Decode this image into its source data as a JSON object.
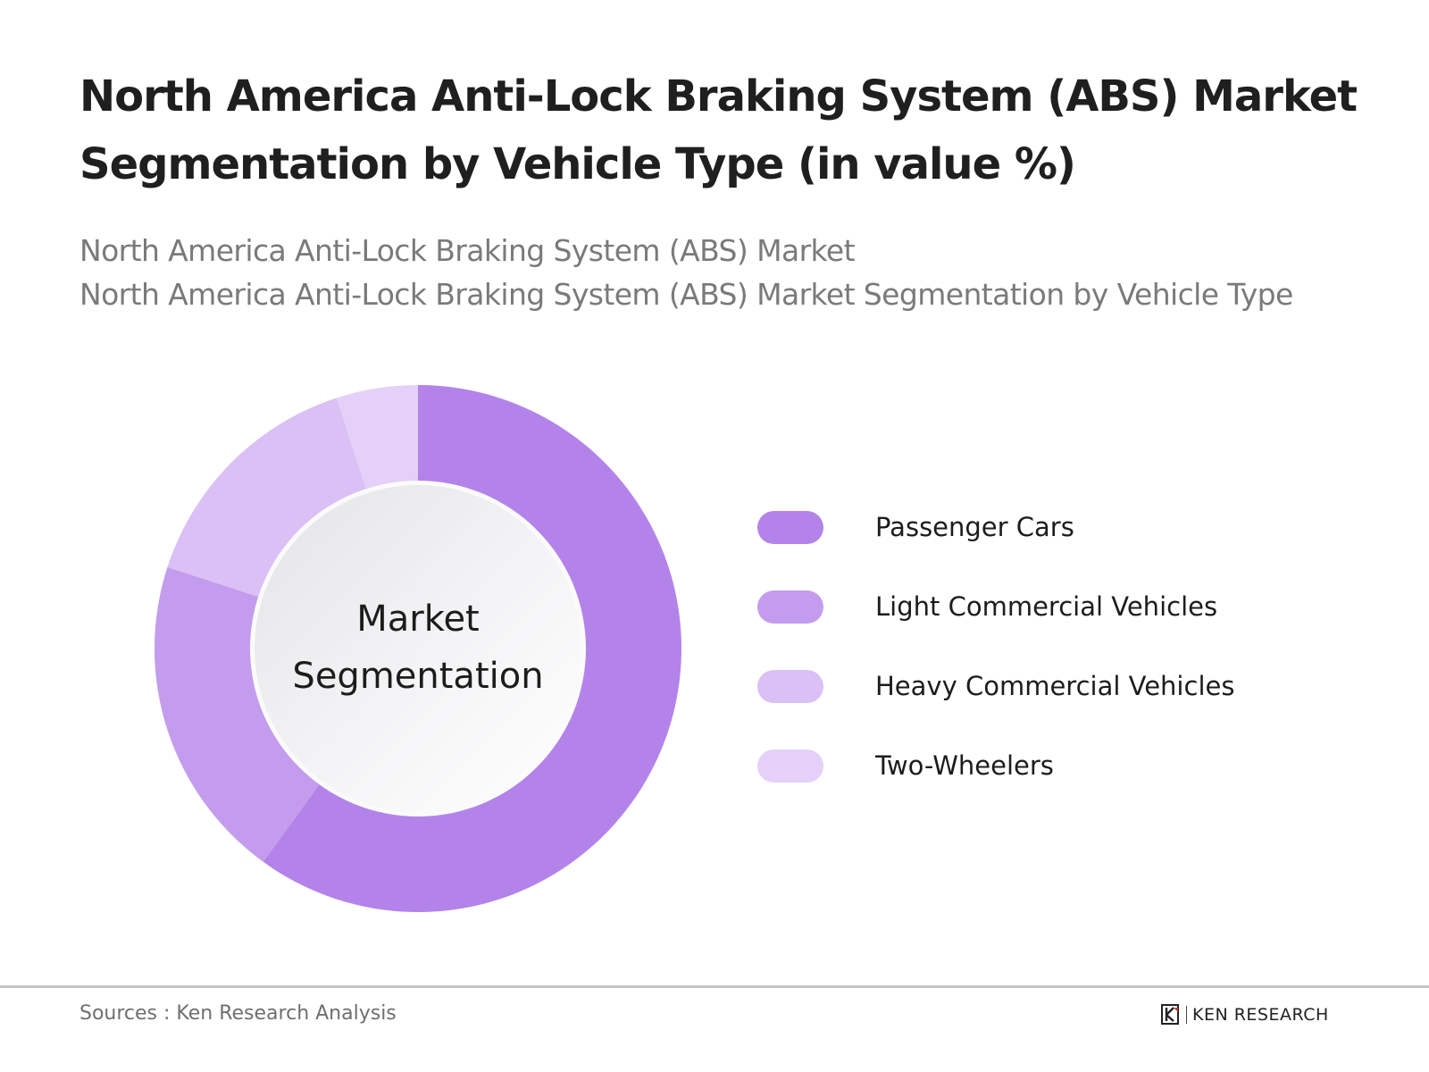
{
  "header": {
    "title_line1": "North America Anti-Lock Braking System (ABS) Market",
    "title_line2": "Segmentation by Vehicle Type (in value %)",
    "subtitle_line1": "North America Anti-Lock Braking System (ABS) Market",
    "subtitle_line2": "North America Anti-Lock Braking System (ABS) Market Segmentation by Vehicle Type"
  },
  "center_label": {
    "line1": "Market",
    "line2": "Segmentation"
  },
  "legend": [
    {
      "label": "Passenger Cars",
      "color": "#b383ea"
    },
    {
      "label": "Light Commercial Vehicles",
      "color": "#c49ced"
    },
    {
      "label": "Heavy Commercial Vehicles",
      "color": "#dac0f5"
    },
    {
      "label": "Two-Wheelers",
      "color": "#e4d0f8"
    }
  ],
  "footer": {
    "source": "Sources : Ken Research Analysis",
    "brand": "KEN RESEARCH"
  },
  "chart_data": {
    "type": "pie",
    "subtype": "donut",
    "title": "North America Anti-Lock Braking System (ABS) Market Segmentation by Vehicle Type (in value %)",
    "center_text": "Market Segmentation",
    "categories": [
      "Passenger Cars",
      "Light Commercial Vehicles",
      "Heavy Commercial Vehicles",
      "Two-Wheelers"
    ],
    "values": [
      60,
      20,
      15,
      5
    ],
    "colors": [
      "#b383ea",
      "#c49ced",
      "#dac0f5",
      "#e4d0f8"
    ],
    "start_angle": "12 o'clock, clockwise",
    "legend_position": "right",
    "data_labels": false
  }
}
